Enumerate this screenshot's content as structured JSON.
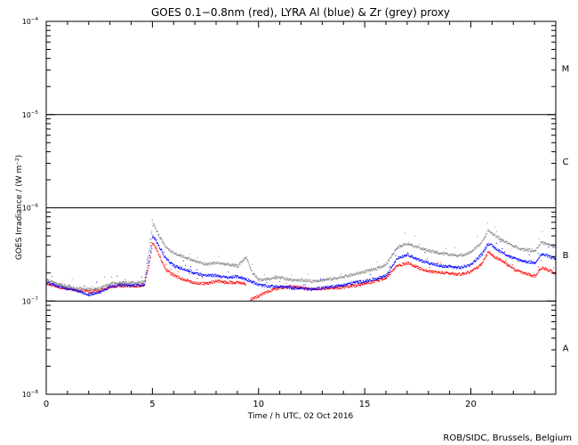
{
  "chart_data": {
    "type": "scatter",
    "title": "GOES 0.1−0.8nm (red), LYRA Al (blue) & Zr (grey) proxy",
    "xlabel": "Time / h UTC, 02 Oct 2016",
    "ylabel": "GOES Irradiance / (W m⁻²)",
    "xlim": [
      0,
      24
    ],
    "ylim": [
      1e-08,
      0.0001
    ],
    "y_scale": "log",
    "x_ticks": [
      0,
      5,
      10,
      15,
      20
    ],
    "x_tick_labels": [
      "0",
      "5",
      "10",
      "15",
      "20"
    ],
    "y_ticks": [
      1e-08,
      1e-07,
      1e-06,
      1e-05,
      0.0001
    ],
    "y_tick_labels": [
      {
        "base": "10",
        "exp": "−8"
      },
      {
        "base": "10",
        "exp": "−7"
      },
      {
        "base": "10",
        "exp": "−6"
      },
      {
        "base": "10",
        "exp": "−5"
      },
      {
        "base": "10",
        "exp": "−4"
      }
    ],
    "flare_classes": [
      {
        "label": "A",
        "y": 3.16e-08
      },
      {
        "label": "B",
        "y": 3.16e-07
      },
      {
        "label": "C",
        "y": 3.16e-06
      },
      {
        "label": "M",
        "y": 3.16e-05
      }
    ],
    "class_lines": [
      1e-07,
      1e-06,
      1e-05
    ],
    "series": [
      {
        "name": "GOES 0.1−0.8nm",
        "color": "#ff0000",
        "points": [
          [
            0,
            1.55e-07
          ],
          [
            0.5,
            1.45e-07
          ],
          [
            1,
            1.35e-07
          ],
          [
            1.5,
            1.32e-07
          ],
          [
            2,
            1.28e-07
          ],
          [
            2.5,
            1.32e-07
          ],
          [
            3,
            1.42e-07
          ],
          [
            3.5,
            1.48e-07
          ],
          [
            4,
            1.45e-07
          ],
          [
            4.6,
            1.5e-07
          ],
          [
            4.85,
            2.6e-07
          ],
          [
            5,
            4.3e-07
          ],
          [
            5.2,
            3.6e-07
          ],
          [
            5.6,
            2.2e-07
          ],
          [
            6,
            1.9e-07
          ],
          [
            6.5,
            1.7e-07
          ],
          [
            7,
            1.58e-07
          ],
          [
            7.5,
            1.55e-07
          ],
          [
            8,
            1.65e-07
          ],
          [
            8.5,
            1.6e-07
          ],
          [
            9,
            1.6e-07
          ],
          [
            9.4,
            1.55e-07
          ],
          [
            9.55,
            null
          ],
          [
            9.6,
            1.05e-07
          ],
          [
            10,
            1.15e-07
          ],
          [
            10.5,
            1.3e-07
          ],
          [
            11,
            1.4e-07
          ],
          [
            11.5,
            1.45e-07
          ],
          [
            12,
            1.4e-07
          ],
          [
            12.5,
            1.35e-07
          ],
          [
            13,
            1.38e-07
          ],
          [
            13.5,
            1.4e-07
          ],
          [
            14,
            1.42e-07
          ],
          [
            14.5,
            1.48e-07
          ],
          [
            15,
            1.55e-07
          ],
          [
            15.5,
            1.65e-07
          ],
          [
            16,
            1.8e-07
          ],
          [
            16.5,
            2.4e-07
          ],
          [
            17,
            2.6e-07
          ],
          [
            17.5,
            2.3e-07
          ],
          [
            18,
            2.1e-07
          ],
          [
            18.5,
            2.05e-07
          ],
          [
            19,
            2e-07
          ],
          [
            19.5,
            1.95e-07
          ],
          [
            20,
            2.1e-07
          ],
          [
            20.5,
            2.5e-07
          ],
          [
            20.8,
            3.4e-07
          ],
          [
            21,
            3.1e-07
          ],
          [
            21.5,
            2.7e-07
          ],
          [
            22,
            2.2e-07
          ],
          [
            22.5,
            2e-07
          ],
          [
            23,
            1.85e-07
          ],
          [
            23.3,
            2.3e-07
          ],
          [
            23.6,
            2.2e-07
          ],
          [
            24,
            1.95e-07
          ]
        ]
      },
      {
        "name": "LYRA Al proxy",
        "color": "#0000ff",
        "points": [
          [
            0,
            1.6e-07
          ],
          [
            0.5,
            1.48e-07
          ],
          [
            1,
            1.38e-07
          ],
          [
            1.5,
            1.28e-07
          ],
          [
            2,
            1.18e-07
          ],
          [
            2.5,
            1.25e-07
          ],
          [
            3,
            1.45e-07
          ],
          [
            3.5,
            1.5e-07
          ],
          [
            4,
            1.48e-07
          ],
          [
            4.6,
            1.52e-07
          ],
          [
            4.85,
            3e-07
          ],
          [
            5,
            5.2e-07
          ],
          [
            5.2,
            4.3e-07
          ],
          [
            5.6,
            2.9e-07
          ],
          [
            6,
            2.4e-07
          ],
          [
            6.5,
            2.2e-07
          ],
          [
            7,
            2e-07
          ],
          [
            7.5,
            1.9e-07
          ],
          [
            8,
            1.9e-07
          ],
          [
            8.5,
            1.8e-07
          ],
          [
            9,
            1.85e-07
          ],
          [
            9.5,
            1.7e-07
          ],
          [
            10,
            1.5e-07
          ],
          [
            10.5,
            1.45e-07
          ],
          [
            11,
            1.45e-07
          ],
          [
            11.5,
            1.4e-07
          ],
          [
            12,
            1.38e-07
          ],
          [
            12.5,
            1.35e-07
          ],
          [
            13,
            1.4e-07
          ],
          [
            13.5,
            1.45e-07
          ],
          [
            14,
            1.5e-07
          ],
          [
            14.5,
            1.6e-07
          ],
          [
            15,
            1.65e-07
          ],
          [
            15.5,
            1.75e-07
          ],
          [
            16,
            1.9e-07
          ],
          [
            16.5,
            2.9e-07
          ],
          [
            17,
            3.2e-07
          ],
          [
            17.5,
            2.8e-07
          ],
          [
            18,
            2.6e-07
          ],
          [
            18.5,
            2.4e-07
          ],
          [
            19,
            2.35e-07
          ],
          [
            19.5,
            2.3e-07
          ],
          [
            20,
            2.5e-07
          ],
          [
            20.5,
            3.2e-07
          ],
          [
            20.8,
            4.2e-07
          ],
          [
            21,
            3.9e-07
          ],
          [
            21.5,
            3.3e-07
          ],
          [
            22,
            2.9e-07
          ],
          [
            22.5,
            2.7e-07
          ],
          [
            23,
            2.6e-07
          ],
          [
            23.3,
            3.2e-07
          ],
          [
            23.6,
            3.1e-07
          ],
          [
            24,
            2.8e-07
          ]
        ]
      },
      {
        "name": "LYRA Zr proxy",
        "color": "#888888",
        "points": [
          [
            0,
            1.7e-07
          ],
          [
            0.5,
            1.55e-07
          ],
          [
            1,
            1.45e-07
          ],
          [
            1.5,
            1.38e-07
          ],
          [
            2,
            1.35e-07
          ],
          [
            2.5,
            1.38e-07
          ],
          [
            3,
            1.55e-07
          ],
          [
            3.5,
            1.6e-07
          ],
          [
            4,
            1.58e-07
          ],
          [
            4.6,
            1.62e-07
          ],
          [
            4.85,
            4e-07
          ],
          [
            5,
            7e-07
          ],
          [
            5.2,
            5.6e-07
          ],
          [
            5.6,
            3.8e-07
          ],
          [
            6,
            3.3e-07
          ],
          [
            6.5,
            3e-07
          ],
          [
            7,
            2.7e-07
          ],
          [
            7.5,
            2.5e-07
          ],
          [
            8,
            2.6e-07
          ],
          [
            8.5,
            2.5e-07
          ],
          [
            9,
            2.4e-07
          ],
          [
            9.4,
            3e-07
          ],
          [
            9.7,
            2e-07
          ],
          [
            10,
            1.7e-07
          ],
          [
            10.5,
            1.75e-07
          ],
          [
            11,
            1.8e-07
          ],
          [
            11.5,
            1.7e-07
          ],
          [
            12,
            1.7e-07
          ],
          [
            12.5,
            1.65e-07
          ],
          [
            13,
            1.7e-07
          ],
          [
            13.5,
            1.75e-07
          ],
          [
            14,
            1.85e-07
          ],
          [
            14.5,
            1.95e-07
          ],
          [
            15,
            2.1e-07
          ],
          [
            15.5,
            2.2e-07
          ],
          [
            16,
            2.5e-07
          ],
          [
            16.5,
            3.8e-07
          ],
          [
            17,
            4.2e-07
          ],
          [
            17.5,
            3.8e-07
          ],
          [
            18,
            3.5e-07
          ],
          [
            18.5,
            3.3e-07
          ],
          [
            19,
            3.2e-07
          ],
          [
            19.5,
            3.1e-07
          ],
          [
            20,
            3.4e-07
          ],
          [
            20.5,
            4.3e-07
          ],
          [
            20.8,
            5.8e-07
          ],
          [
            21,
            5.3e-07
          ],
          [
            21.5,
            4.5e-07
          ],
          [
            22,
            3.9e-07
          ],
          [
            22.5,
            3.6e-07
          ],
          [
            23,
            3.5e-07
          ],
          [
            23.3,
            4.3e-07
          ],
          [
            23.6,
            4.1e-07
          ],
          [
            24,
            3.8e-07
          ]
        ]
      }
    ]
  },
  "credit": "ROB/SIDC, Brussels, Belgium"
}
